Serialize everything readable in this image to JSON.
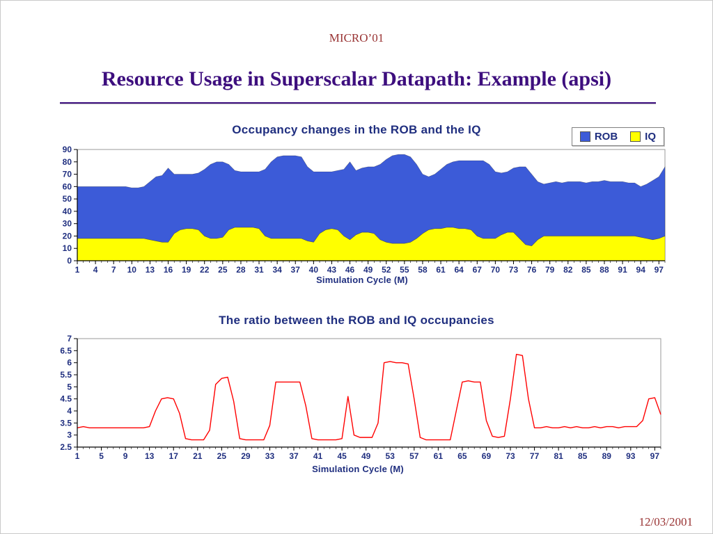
{
  "slide": {
    "header": "MICRO’01",
    "title": "Resource Usage in Superscalar Datapath: Example (apsi)",
    "date": "12/03/2001"
  },
  "colors": {
    "header_text": "#993333",
    "title_text": "#3D0E7E",
    "divider": "#3D0E7E",
    "chart_text": "#1F2E7F",
    "rob_blue": "#3C5BD8",
    "iq_yellow": "#FFFF00",
    "ratio_red": "#FF0000"
  },
  "chart_data": [
    {
      "type": "area",
      "stacked": true,
      "title": "Occupancy changes in the ROB and the IQ",
      "xlabel": "Simulation Cycle (M)",
      "legend": [
        "ROB",
        "IQ"
      ],
      "legend_position": "top-right",
      "x_range": [
        1,
        98
      ],
      "ylim": [
        0,
        90
      ],
      "y_ticks": [
        0,
        10,
        20,
        30,
        40,
        50,
        60,
        70,
        80,
        90
      ],
      "x_tick_labels": [
        1,
        4,
        7,
        10,
        13,
        16,
        19,
        22,
        25,
        28,
        31,
        34,
        37,
        40,
        43,
        46,
        49,
        52,
        55,
        58,
        61,
        64,
        67,
        70,
        73,
        76,
        79,
        82,
        85,
        88,
        91,
        94,
        97
      ],
      "series": [
        {
          "name": "IQ",
          "color": "#FFFF00",
          "values": [
            18,
            18,
            18,
            18,
            18,
            18,
            18,
            18,
            18,
            18,
            18,
            18,
            17,
            16,
            15,
            15,
            22,
            25,
            26,
            26,
            25,
            20,
            18,
            18,
            19,
            25,
            27,
            27,
            27,
            27,
            26,
            20,
            18,
            18,
            18,
            18,
            18,
            18,
            16,
            15,
            22,
            25,
            26,
            25,
            20,
            17,
            21,
            23,
            23,
            22,
            17,
            15,
            14,
            14,
            14,
            15,
            18,
            22,
            25,
            26,
            26,
            27,
            27,
            26,
            26,
            25,
            20,
            18,
            18,
            18,
            21,
            23,
            23,
            18,
            13,
            12,
            17,
            20,
            20,
            20,
            20,
            20,
            20,
            20,
            20,
            20,
            20,
            20,
            20,
            20,
            20,
            20,
            20,
            19,
            18,
            17,
            18,
            20
          ]
        },
        {
          "name": "ROB",
          "color": "#3C5BD8",
          "values": [
            42,
            42,
            42,
            42,
            42,
            42,
            42,
            42,
            42,
            41,
            41,
            42,
            47,
            52,
            54,
            60,
            48,
            45,
            44,
            44,
            46,
            54,
            60,
            62,
            61,
            53,
            46,
            45,
            45,
            45,
            46,
            54,
            62,
            66,
            67,
            67,
            67,
            66,
            60,
            57,
            50,
            47,
            46,
            48,
            54,
            63,
            52,
            52,
            53,
            54,
            61,
            67,
            71,
            72,
            72,
            69,
            60,
            48,
            43,
            44,
            48,
            51,
            53,
            55,
            55,
            56,
            61,
            63,
            60,
            54,
            50,
            49,
            52,
            58,
            63,
            58,
            47,
            42,
            43,
            44,
            43,
            44,
            44,
            44,
            43,
            44,
            44,
            45,
            44,
            44,
            44,
            43,
            43,
            41,
            44,
            48,
            50,
            56
          ]
        }
      ]
    },
    {
      "type": "line",
      "title": "The ratio between the ROB and IQ occupancies",
      "xlabel": "Simulation Cycle (M)",
      "x_range": [
        1,
        98
      ],
      "ylim": [
        2.5,
        7
      ],
      "y_ticks": [
        2.5,
        3,
        3.5,
        4,
        4.5,
        5,
        5.5,
        6,
        6.5,
        7
      ],
      "x_tick_labels": [
        1,
        5,
        9,
        13,
        17,
        21,
        25,
        29,
        33,
        37,
        41,
        45,
        49,
        53,
        57,
        61,
        65,
        69,
        73,
        77,
        81,
        85,
        89,
        93,
        97
      ],
      "series": [
        {
          "name": "ROB/IQ ratio",
          "color": "#FF0000",
          "values": [
            3.3,
            3.35,
            3.3,
            3.3,
            3.3,
            3.3,
            3.3,
            3.3,
            3.3,
            3.3,
            3.3,
            3.3,
            3.35,
            4.0,
            4.5,
            4.55,
            4.5,
            3.9,
            2.85,
            2.8,
            2.8,
            2.8,
            3.2,
            5.1,
            5.35,
            5.4,
            4.4,
            2.85,
            2.8,
            2.8,
            2.8,
            2.8,
            3.4,
            5.2,
            5.2,
            5.2,
            5.2,
            5.2,
            4.2,
            2.85,
            2.8,
            2.8,
            2.8,
            2.8,
            2.85,
            4.6,
            3.0,
            2.9,
            2.9,
            2.9,
            3.5,
            6.0,
            6.05,
            6.0,
            6.0,
            5.95,
            4.5,
            2.9,
            2.8,
            2.8,
            2.8,
            2.8,
            2.8,
            4.0,
            5.2,
            5.25,
            5.2,
            5.2,
            3.6,
            2.95,
            2.9,
            2.95,
            4.5,
            6.35,
            6.3,
            4.5,
            3.3,
            3.3,
            3.35,
            3.3,
            3.3,
            3.35,
            3.3,
            3.35,
            3.3,
            3.3,
            3.35,
            3.3,
            3.35,
            3.35,
            3.3,
            3.35,
            3.35,
            3.35,
            3.6,
            4.5,
            4.55,
            3.85
          ]
        }
      ]
    }
  ]
}
